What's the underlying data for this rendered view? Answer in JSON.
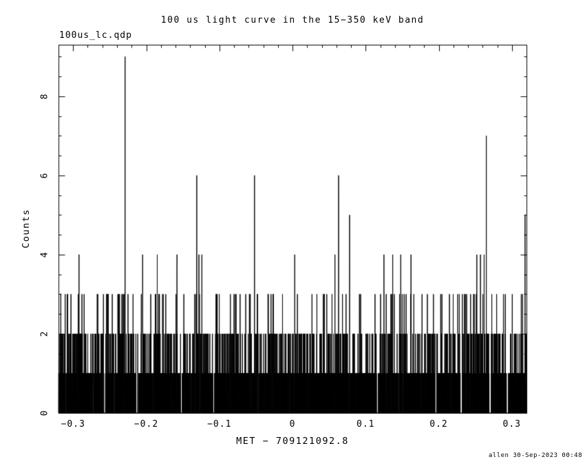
{
  "figure": {
    "background": "#ffffff",
    "ink": "#000000"
  },
  "chart_data": {
    "type": "line",
    "title": "100 us light curve in the 15−350 keV band",
    "plot_label": "100us_lc.qdp",
    "xlabel": "MET − 709121092.8",
    "ylabel": "Counts",
    "credit": "allen 30-Sep-2023 00:48",
    "xlim": [
      -0.32,
      0.32
    ],
    "ylim": [
      0,
      9.3
    ],
    "bin_width": 0.0001,
    "x_ticks": [
      {
        "v": -0.3,
        "label": "−0.3"
      },
      {
        "v": -0.2,
        "label": "−0.2"
      },
      {
        "v": -0.1,
        "label": "−0.1"
      },
      {
        "v": 0,
        "label": "0"
      },
      {
        "v": 0.1,
        "label": "0.1"
      },
      {
        "v": 0.2,
        "label": "0.2"
      },
      {
        "v": 0.3,
        "label": "0.3"
      }
    ],
    "y_ticks": [
      {
        "v": 0,
        "label": "0"
      },
      {
        "v": 2,
        "label": "2"
      },
      {
        "v": 4,
        "label": "4"
      },
      {
        "v": 6,
        "label": "6"
      },
      {
        "v": 8,
        "label": "8"
      }
    ],
    "x_minor_step": 0.02,
    "y_minor_step": 0.5,
    "grid": false,
    "baseline_noise": {
      "distribution": "poisson",
      "mean_counts_per_bin": 0.55,
      "clamp_max": 3,
      "seed": 20230930
    },
    "zero_gaps": [
      {
        "x": -0.257,
        "width": 0.002
      },
      {
        "x": -0.213,
        "width": 0.002
      },
      {
        "x": -0.152,
        "width": 0.002
      },
      {
        "x": -0.108,
        "width": 0.002
      },
      {
        "x": 0.116,
        "width": 0.002
      },
      {
        "x": 0.196,
        "width": 0.002
      },
      {
        "x": 0.231,
        "width": 0.002
      },
      {
        "x": 0.27,
        "width": 0.002
      },
      {
        "x": 0.294,
        "width": 0.002
      }
    ],
    "peaks": [
      {
        "x": -0.229,
        "counts": 9
      },
      {
        "x": 0.265,
        "counts": 7
      },
      {
        "x": -0.131,
        "counts": 6
      },
      {
        "x": -0.052,
        "counts": 6
      },
      {
        "x": 0.063,
        "counts": 6
      },
      {
        "x": 0.078,
        "counts": 5
      },
      {
        "x": 0.318,
        "counts": 5
      },
      {
        "x": -0.292,
        "counts": 4
      },
      {
        "x": -0.205,
        "counts": 4
      },
      {
        "x": -0.185,
        "counts": 4
      },
      {
        "x": -0.158,
        "counts": 4
      },
      {
        "x": -0.128,
        "counts": 4
      },
      {
        "x": -0.124,
        "counts": 4
      },
      {
        "x": 0.003,
        "counts": 4
      },
      {
        "x": 0.058,
        "counts": 4
      },
      {
        "x": 0.125,
        "counts": 4
      },
      {
        "x": 0.137,
        "counts": 4
      },
      {
        "x": 0.148,
        "counts": 4
      },
      {
        "x": 0.162,
        "counts": 4
      },
      {
        "x": 0.252,
        "counts": 4
      },
      {
        "x": 0.257,
        "counts": 4
      },
      {
        "x": 0.262,
        "counts": 4
      }
    ]
  }
}
